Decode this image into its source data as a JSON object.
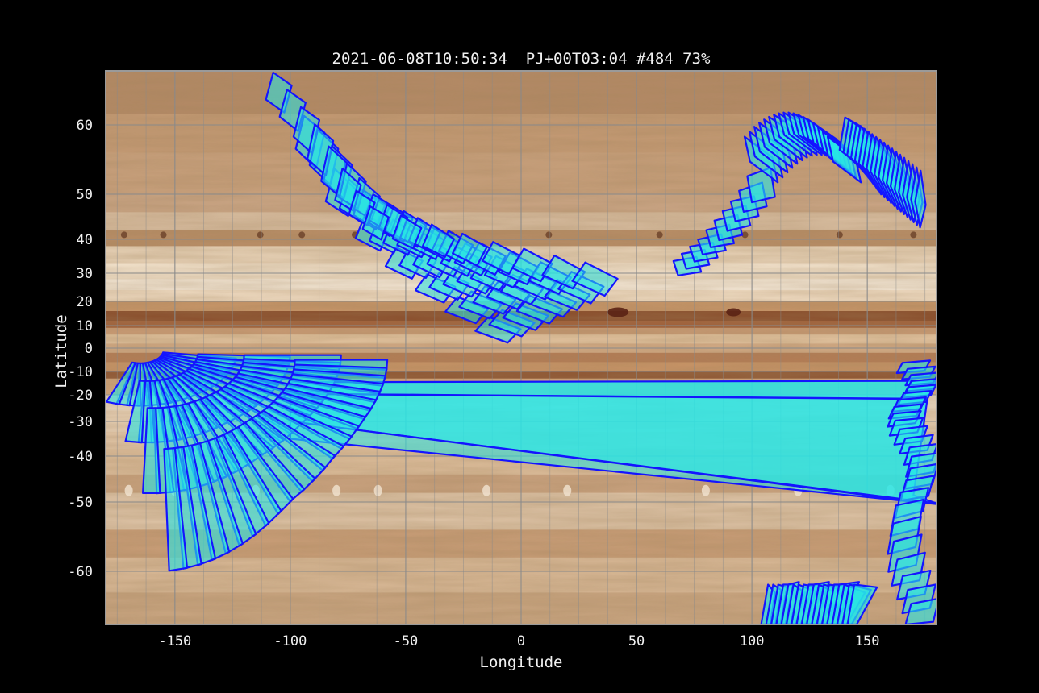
{
  "chart_data": {
    "type": "scatter",
    "title": "2021-06-08T10:50:34  PJ+00T03:04 #484 73%",
    "xlabel": "Longitude",
    "ylabel": "Latitude",
    "xlim": [
      -180,
      180
    ],
    "ylim": [
      -70,
      70
    ],
    "y_scale": "stretched toward poles (planetographic-style)",
    "x_ticks": [
      {
        "value": -150,
        "label": "-150"
      },
      {
        "value": -100,
        "label": "-100"
      },
      {
        "value": -50,
        "label": "-50"
      },
      {
        "value": 0,
        "label": "0"
      },
      {
        "value": 50,
        "label": "50"
      },
      {
        "value": 100,
        "label": "100"
      },
      {
        "value": 150,
        "label": "150"
      }
    ],
    "y_ticks": [
      {
        "value": 60,
        "label": "60"
      },
      {
        "value": 50,
        "label": "50"
      },
      {
        "value": 40,
        "label": "40"
      },
      {
        "value": 30,
        "label": "30"
      },
      {
        "value": 20,
        "label": "20"
      },
      {
        "value": 10,
        "label": "10"
      },
      {
        "value": 0,
        "label": "0"
      },
      {
        "value": -10,
        "label": "-10"
      },
      {
        "value": -20,
        "label": "-20"
      },
      {
        "value": -30,
        "label": "-30"
      },
      {
        "value": -40,
        "label": "-40"
      },
      {
        "value": -50,
        "label": "-50"
      },
      {
        "value": -60,
        "label": "-60"
      }
    ],
    "grid": true,
    "background": "Jupiter cylindrical map",
    "footprint_series": [
      {
        "id": "northwest-swath",
        "lon_range": [
          -113,
          1
        ],
        "lat_range": [
          -5,
          71
        ],
        "footprints": 64
      },
      {
        "id": "southwest-fans",
        "lon_range": [
          -180,
          -95
        ],
        "lat_range": [
          -70,
          2
        ],
        "footprints": 90
      },
      {
        "id": "south-band-wedge",
        "lon_range": [
          -100,
          180
        ],
        "lat_range": [
          -50,
          -14
        ],
        "footprints": 3
      },
      {
        "id": "east-edge-stack",
        "lon_range": [
          150,
          180
        ],
        "lat_range": [
          -70,
          -5
        ],
        "footprints": 24
      },
      {
        "id": "north-east-arc",
        "lon_range": [
          69,
          145
        ],
        "lat_range": [
          31,
          61
        ],
        "footprints": 28
      },
      {
        "id": "north-east-fan",
        "lon_range": [
          140,
          180
        ],
        "lat_range": [
          45,
          61
        ],
        "footprints": 20
      },
      {
        "id": "south-east-spikes",
        "lon_range": [
          104,
          144
        ],
        "lat_range": [
          -70,
          -60
        ],
        "footprints": 18
      }
    ],
    "colors": {
      "footprint_fill": "#27e6e6",
      "footprint_edge": "#1414ff",
      "frame": "#9a9a9a",
      "grid": "#8a8a8a"
    }
  }
}
